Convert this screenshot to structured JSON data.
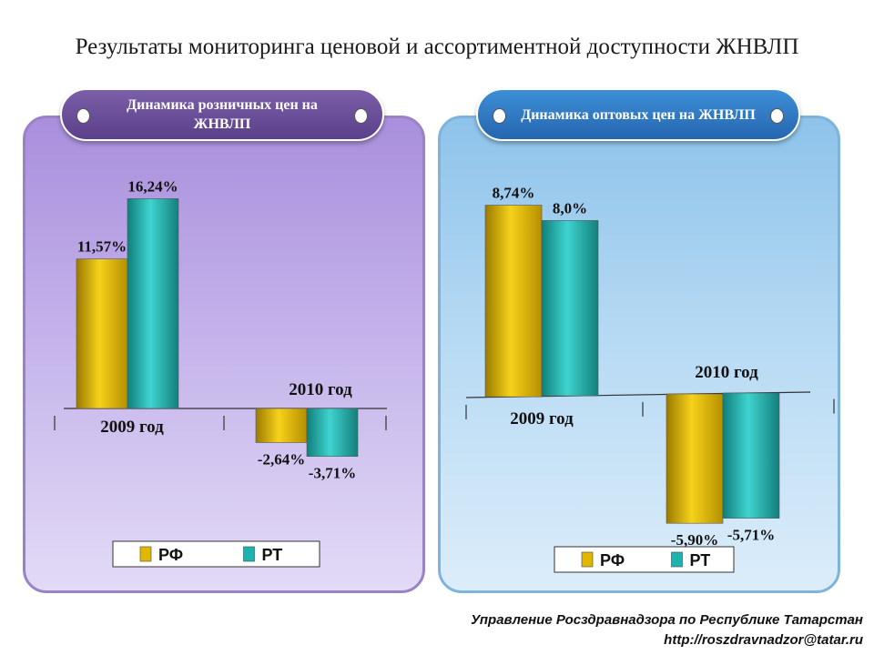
{
  "page": {
    "title": "Результаты мониторинга ценовой и ассортиментной доступности ЖНВЛП",
    "footer_org": "Управление Росздравнадзора по Республике Татарстан",
    "footer_url": "http://roszdravnadzor@tatar.ru"
  },
  "colors": {
    "rf": "#e0b800",
    "rt": "#1fb3b0"
  },
  "chart_data": [
    {
      "type": "bar",
      "title": "Динамика розничных цен на ЖНВЛП",
      "categories": [
        "2009 год",
        "2010 год"
      ],
      "series": [
        {
          "name": "РФ",
          "values": [
            11.57,
            -2.64
          ],
          "labels": [
            "11,57%",
            "-2,64%"
          ]
        },
        {
          "name": "РТ",
          "values": [
            16.24,
            -3.71
          ],
          "labels": [
            "16,24%",
            "-3,71%"
          ]
        }
      ],
      "legend": "bottom",
      "grid": false
    },
    {
      "type": "bar",
      "title": "Динамика оптовых цен на ЖНВЛП",
      "categories": [
        "2009 год",
        "2010 год"
      ],
      "series": [
        {
          "name": "РФ",
          "values": [
            8.74,
            -5.9
          ],
          "labels": [
            "8,74%",
            "-5,90%"
          ]
        },
        {
          "name": "РТ",
          "values": [
            8.0,
            -5.71
          ],
          "labels": [
            "8,0%",
            "-5,71%"
          ]
        }
      ],
      "legend": "bottom",
      "grid": false
    }
  ]
}
